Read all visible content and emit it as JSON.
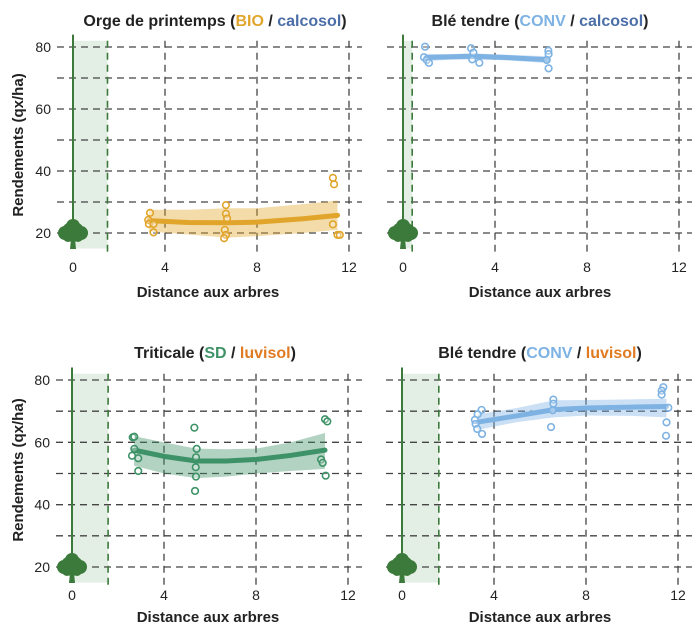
{
  "colors": {
    "BIO": "#E1A52B",
    "calcosol": "#4B6EA8",
    "CONV": "#7DB2E3",
    "SD": "#3E9267",
    "luvisol": "#E07B22",
    "tree": "#3B7A3A",
    "strip": "#E3EEE5",
    "grid": "#444444",
    "text": "#222222"
  },
  "chart_data": [
    {
      "type": "scatter",
      "title": {
        "crop": "Orge de printemps",
        "system": "BIO",
        "soil": "calcosol"
      },
      "title_parts": [
        "Orge de printemps (",
        "BIO",
        " / ",
        "calcosol",
        ")"
      ],
      "xlabel": "Distance aux arbres",
      "ylabel": "Rendements (qx/ha)",
      "xticks": [
        "0",
        "4",
        "8",
        "12"
      ],
      "yticks": [
        "20",
        "40",
        "60",
        "80"
      ],
      "xlim": [
        -0.8,
        12.5
      ],
      "ylim": [
        13,
        83
      ],
      "grid": true,
      "tree_strip_edge": 1.5,
      "color_key": "BIO",
      "points": [
        [
          3.35,
          26.5
        ],
        [
          3.27,
          24.2
        ],
        [
          3.3,
          22.9
        ],
        [
          3.5,
          22.9
        ],
        [
          3.5,
          20.2
        ],
        [
          6.65,
          29
        ],
        [
          6.65,
          26.2
        ],
        [
          6.7,
          24.7
        ],
        [
          6.6,
          21
        ],
        [
          6.65,
          19.4
        ],
        [
          6.57,
          18.3
        ],
        [
          11.3,
          37.8
        ],
        [
          11.35,
          35.7
        ],
        [
          11.3,
          22.8
        ],
        [
          11.5,
          19.4
        ],
        [
          11.6,
          19.4
        ]
      ],
      "trend": [
        [
          3.3,
          24
        ],
        [
          5,
          23.4
        ],
        [
          6.7,
          23.3
        ],
        [
          8,
          23.5
        ],
        [
          10,
          24.6
        ],
        [
          11.5,
          25.7
        ]
      ],
      "band_low": [
        [
          3.3,
          20.5
        ],
        [
          5,
          19.5
        ],
        [
          6.7,
          18.5
        ],
        [
          8,
          19
        ],
        [
          10,
          20
        ],
        [
          11.5,
          21
        ]
      ],
      "band_high": [
        [
          3.3,
          27.5
        ],
        [
          5,
          27.5
        ],
        [
          6.7,
          28
        ],
        [
          8,
          28
        ],
        [
          10,
          29.3
        ],
        [
          11.5,
          30.5
        ]
      ]
    },
    {
      "type": "scatter",
      "title": {
        "crop": "Blé tendre",
        "system": "CONV",
        "soil": "calcosol"
      },
      "title_parts": [
        "Blé tendre (",
        "CONV",
        " / ",
        "calcosol",
        ")"
      ],
      "xlabel": "Distance aux arbres",
      "ylabel": "",
      "xticks": [
        "0",
        "4",
        "8",
        "12"
      ],
      "yticks": [],
      "xlim": [
        -0.8,
        12.5
      ],
      "ylim": [
        13,
        83
      ],
      "grid": true,
      "tree_strip_edge": 0.4,
      "color_key": "CONV",
      "points": [
        [
          0.96,
          80.1
        ],
        [
          0.91,
          76.7
        ],
        [
          1.03,
          75.8
        ],
        [
          1.13,
          74.9
        ],
        [
          2.96,
          79.6
        ],
        [
          3.06,
          78.2
        ],
        [
          3.01,
          76
        ],
        [
          3.32,
          74.9
        ],
        [
          6.32,
          78.8
        ],
        [
          6.33,
          77.7
        ],
        [
          6.25,
          75.8
        ],
        [
          6.33,
          73.1
        ]
      ],
      "trend": [
        [
          1,
          76.6
        ],
        [
          2,
          76.8
        ],
        [
          3,
          77
        ],
        [
          4.5,
          76.6
        ],
        [
          6.3,
          75.9
        ]
      ],
      "band_low": [
        [
          1,
          75.4
        ],
        [
          2,
          75.9
        ],
        [
          3,
          76
        ],
        [
          4.5,
          75.7
        ],
        [
          6.3,
          74.8
        ]
      ],
      "band_high": [
        [
          1,
          77.8
        ],
        [
          2,
          77.7
        ],
        [
          3,
          78
        ],
        [
          4.5,
          77.5
        ],
        [
          6.3,
          77
        ]
      ]
    },
    {
      "type": "scatter",
      "title": {
        "crop": "Triticale",
        "system": "SD",
        "soil": "luvisol"
      },
      "title_parts": [
        "Triticale (",
        "SD",
        " / ",
        "luvisol",
        ")"
      ],
      "xlabel": "Distance aux arbres",
      "ylabel": "Rendements (qx/ha)",
      "xticks": [
        "0",
        "4",
        "8",
        "12"
      ],
      "yticks": [
        "20",
        "40",
        "60",
        "80"
      ],
      "xlim": [
        -0.8,
        12.5
      ],
      "ylim": [
        15,
        84
      ],
      "grid": true,
      "tree_strip_edge": 1.57,
      "color_key": "SD",
      "points": [
        [
          2.64,
          61.6
        ],
        [
          2.71,
          61.8
        ],
        [
          2.71,
          57.9
        ],
        [
          2.61,
          55.7
        ],
        [
          2.88,
          54.9
        ],
        [
          2.88,
          50.8
        ],
        [
          5.32,
          64.7
        ],
        [
          5.42,
          57.9
        ],
        [
          5.39,
          55.2
        ],
        [
          5.38,
          52
        ],
        [
          5.39,
          49
        ],
        [
          5.35,
          44.4
        ],
        [
          11,
          67.4
        ],
        [
          11.1,
          66.7
        ],
        [
          10.83,
          54.5
        ],
        [
          10.9,
          53.4
        ],
        [
          11.03,
          49.3
        ]
      ],
      "trend": [
        [
          2.7,
          57.5
        ],
        [
          4,
          55.5
        ],
        [
          5.4,
          54
        ],
        [
          6.7,
          54
        ],
        [
          8,
          54.5
        ],
        [
          9.5,
          55.8
        ],
        [
          11,
          57.5
        ]
      ],
      "band_low": [
        [
          2.7,
          52.5
        ],
        [
          4,
          50
        ],
        [
          5.4,
          48.5
        ],
        [
          6.7,
          49
        ],
        [
          8,
          50
        ],
        [
          9.5,
          50.8
        ],
        [
          11,
          51.5
        ]
      ],
      "band_high": [
        [
          2.7,
          62
        ],
        [
          4,
          60
        ],
        [
          5.4,
          58
        ],
        [
          6.7,
          57.8
        ],
        [
          8,
          58
        ],
        [
          9.5,
          60
        ],
        [
          11,
          63
        ]
      ]
    },
    {
      "type": "scatter",
      "title": {
        "crop": "Blé tendre",
        "system": "CONV",
        "soil": "luvisol"
      },
      "title_parts": [
        "Blé tendre (",
        "CONV",
        " / ",
        "luvisol",
        ")"
      ],
      "xlabel": "Distance aux arbres",
      "ylabel": "",
      "xticks": [
        "0",
        "4",
        "8",
        "12"
      ],
      "yticks": [],
      "xlim": [
        -0.8,
        12.5
      ],
      "ylim": [
        15,
        84
      ],
      "grid": true,
      "tree_strip_edge": 1.6,
      "color_key": "CONV",
      "points": [
        [
          3.46,
          70.4
        ],
        [
          3.29,
          69
        ],
        [
          3.17,
          67.2
        ],
        [
          3.2,
          65.9
        ],
        [
          3.27,
          64.3
        ],
        [
          3.48,
          62.7
        ],
        [
          6.58,
          73.7
        ],
        [
          6.58,
          72.4
        ],
        [
          6.55,
          70.3
        ],
        [
          6.48,
          64.9
        ],
        [
          11.36,
          77.7
        ],
        [
          11.29,
          76.6
        ],
        [
          11.29,
          75.3
        ],
        [
          11.58,
          71.1
        ],
        [
          11.5,
          66.4
        ],
        [
          11.48,
          62.1
        ]
      ],
      "trend": [
        [
          3.3,
          66.5
        ],
        [
          5,
          68.5
        ],
        [
          6.6,
          70.5
        ],
        [
          8,
          71
        ],
        [
          10,
          71.3
        ],
        [
          11.5,
          71.5
        ]
      ],
      "band_low": [
        [
          3.3,
          64
        ],
        [
          5,
          66.5
        ],
        [
          6.6,
          68
        ],
        [
          8,
          68.6
        ],
        [
          10,
          68.5
        ],
        [
          11.5,
          68
        ]
      ],
      "band_high": [
        [
          3.3,
          69
        ],
        [
          5,
          71
        ],
        [
          6.6,
          73.5
        ],
        [
          8,
          73.6
        ],
        [
          10,
          73.8
        ],
        [
          11.5,
          74
        ]
      ]
    }
  ]
}
